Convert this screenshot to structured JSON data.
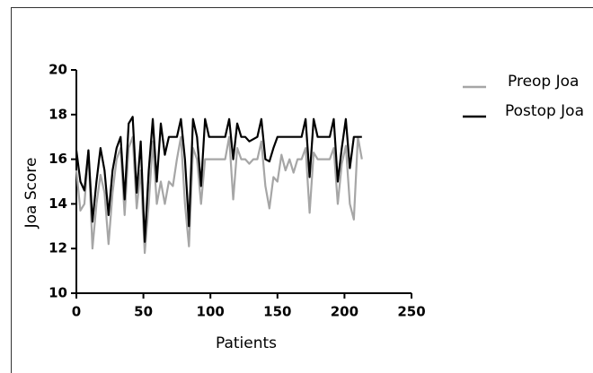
{
  "chart_data": {
    "type": "line",
    "xlabel": "Patients",
    "ylabel": "Joa Score",
    "x": [
      0,
      3,
      6,
      9,
      12,
      15,
      18,
      21,
      24,
      27,
      30,
      33,
      36,
      39,
      42,
      45,
      48,
      51,
      54,
      57,
      60,
      63,
      66,
      69,
      72,
      75,
      78,
      81,
      84,
      87,
      90,
      93,
      96,
      99,
      102,
      105,
      108,
      111,
      114,
      117,
      120,
      123,
      126,
      129,
      132,
      135,
      138,
      141,
      144,
      147,
      150,
      153,
      156,
      159,
      162,
      165,
      168,
      171,
      174,
      177,
      180,
      183,
      186,
      189,
      192,
      195,
      198,
      201,
      204,
      207,
      210,
      213
    ],
    "series": [
      {
        "name": "Preop Joa",
        "color": "#a6a6a6",
        "values": [
          15.5,
          13.7,
          14,
          16.4,
          12,
          14,
          15.3,
          14.5,
          12.2,
          14.5,
          16,
          16.5,
          13.5,
          16.5,
          17,
          13.8,
          15.5,
          11.8,
          14,
          16.8,
          14,
          15,
          14,
          15,
          14.8,
          16,
          17,
          14,
          12.1,
          16.5,
          16,
          14,
          16,
          16,
          16,
          16,
          16,
          16,
          17,
          14.2,
          16.5,
          16,
          16,
          15.8,
          16,
          16,
          16.8,
          14.8,
          13.8,
          15.2,
          15,
          16.2,
          15.5,
          16,
          15.4,
          16,
          16,
          16.5,
          13.6,
          16.3,
          16,
          16,
          16,
          16,
          16.5,
          14,
          15.8,
          16.6,
          14,
          13.3,
          17,
          16
        ]
      },
      {
        "name": "Postop Joa",
        "color": "#000000",
        "values": [
          16.4,
          15,
          14.6,
          16.4,
          13.2,
          15,
          16.5,
          15.5,
          13.5,
          15.5,
          16.5,
          17,
          14.2,
          17.6,
          17.9,
          14.5,
          16.8,
          12.3,
          15.5,
          17.8,
          15,
          17.6,
          16.2,
          17,
          17,
          17,
          17.8,
          16,
          13,
          17.8,
          17,
          14.8,
          17.8,
          17,
          17,
          17,
          17,
          17,
          17.8,
          16,
          17.6,
          17,
          17,
          16.8,
          16.9,
          17,
          17.8,
          16,
          15.9,
          16.5,
          17,
          17,
          17,
          17,
          17,
          17,
          17,
          17.8,
          15.2,
          17.8,
          17,
          17,
          17,
          17,
          17.8,
          15,
          16.5,
          17.8,
          15.6,
          17,
          17,
          17
        ]
      }
    ],
    "xlim": [
      0,
      250
    ],
    "xticks": [
      0,
      50,
      100,
      150,
      200,
      250
    ],
    "ylim": [
      10,
      20
    ],
    "yticks": [
      10,
      12,
      14,
      16,
      18,
      20
    ],
    "legend": "right"
  }
}
